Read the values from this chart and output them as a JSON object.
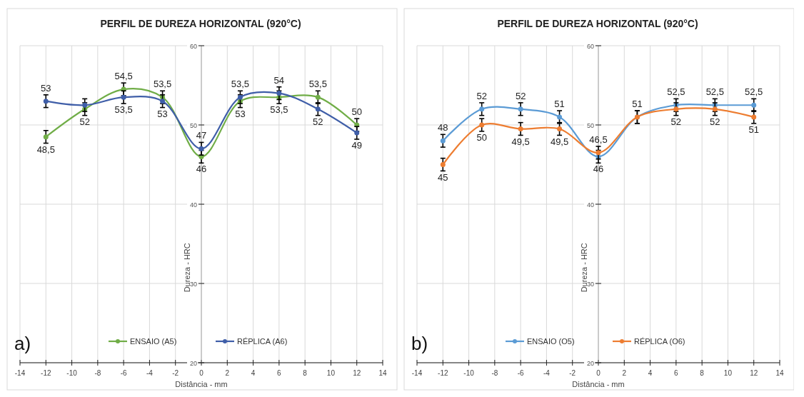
{
  "chart_data": [
    {
      "type": "line",
      "title": "PERFIL DE DUREZA HORIZONTAL (920°C)",
      "xlabel": "Distância - mm",
      "ylabel": "Dureza - HRC",
      "x": [
        -12,
        -9,
        -6,
        -3,
        0,
        3,
        6,
        9,
        12
      ],
      "xlim": [
        -14,
        14
      ],
      "xticks": [
        -14,
        -12,
        -10,
        -8,
        -6,
        -4,
        -2,
        0,
        2,
        4,
        6,
        8,
        10,
        12,
        14
      ],
      "ylim": [
        20,
        60
      ],
      "yticks": [
        20,
        30,
        40,
        50,
        60
      ],
      "grid": true,
      "legend": "bottom",
      "marker": "circle",
      "annotations": [
        "a)"
      ],
      "series": [
        {
          "name": "ENSAIO (A5)",
          "color": "#70ad47",
          "values": [
            48.5,
            52,
            54.5,
            53.5,
            46,
            53,
            53.5,
            53.5,
            50
          ],
          "errors": [
            0.8,
            0.8,
            0.8,
            0.8,
            0.8,
            0.8,
            0.8,
            0.8,
            0.8
          ],
          "value_labels": [
            "48,5",
            "52",
            "54,5",
            "53,5",
            "46",
            "53",
            "53,5",
            "53,5",
            "50"
          ]
        },
        {
          "name": "RÉPLICA (A6)",
          "color": "#3f5ea8",
          "values": [
            53,
            52.5,
            53.5,
            53,
            47,
            53.5,
            54,
            52,
            49
          ],
          "errors": [
            0.8,
            0.8,
            0.8,
            0.8,
            0.8,
            0.8,
            0.8,
            0.8,
            0.8
          ],
          "value_labels": [
            "53",
            null,
            "53,5",
            "53",
            "47",
            "53,5",
            "54",
            "52",
            "49"
          ]
        }
      ]
    },
    {
      "type": "line",
      "title": "PERFIL DE DUREZA HORIZONTAL (920°C)",
      "xlabel": "Distância - mm",
      "ylabel": "Dureza - HRC",
      "x": [
        -12,
        -9,
        -6,
        -3,
        0,
        3,
        6,
        9,
        12
      ],
      "xlim": [
        -14,
        14
      ],
      "xticks": [
        -14,
        -12,
        -10,
        -8,
        -6,
        -4,
        -2,
        0,
        2,
        4,
        6,
        8,
        10,
        12,
        14
      ],
      "ylim": [
        20,
        60
      ],
      "yticks": [
        20,
        30,
        40,
        50,
        60
      ],
      "grid": true,
      "legend": "bottom",
      "marker": "circle",
      "annotations": [
        "b)"
      ],
      "series": [
        {
          "name": "ENSAIO (O5)",
          "color": "#5b9bd5",
          "values": [
            48,
            52,
            52,
            51,
            46,
            51,
            52.5,
            52.5,
            52.5
          ],
          "errors": [
            0.8,
            0.8,
            0.8,
            0.8,
            0.8,
            0.8,
            0.8,
            0.8,
            0.8
          ],
          "value_labels": [
            "48",
            "52",
            "52",
            "51",
            "46",
            "51",
            "52,5",
            "52,5",
            "52,5"
          ]
        },
        {
          "name": "RÉPLICA (O6)",
          "color": "#ed7d31",
          "values": [
            45,
            50,
            49.5,
            49.5,
            46.5,
            51,
            52,
            52,
            51
          ],
          "errors": [
            0.8,
            0.8,
            0.8,
            0.8,
            0.8,
            0.8,
            0.8,
            0.8,
            0.8
          ],
          "value_labels": [
            "45",
            "50",
            "49,5",
            "49,5",
            "46,5",
            null,
            "52",
            "52",
            "51"
          ]
        }
      ]
    }
  ]
}
